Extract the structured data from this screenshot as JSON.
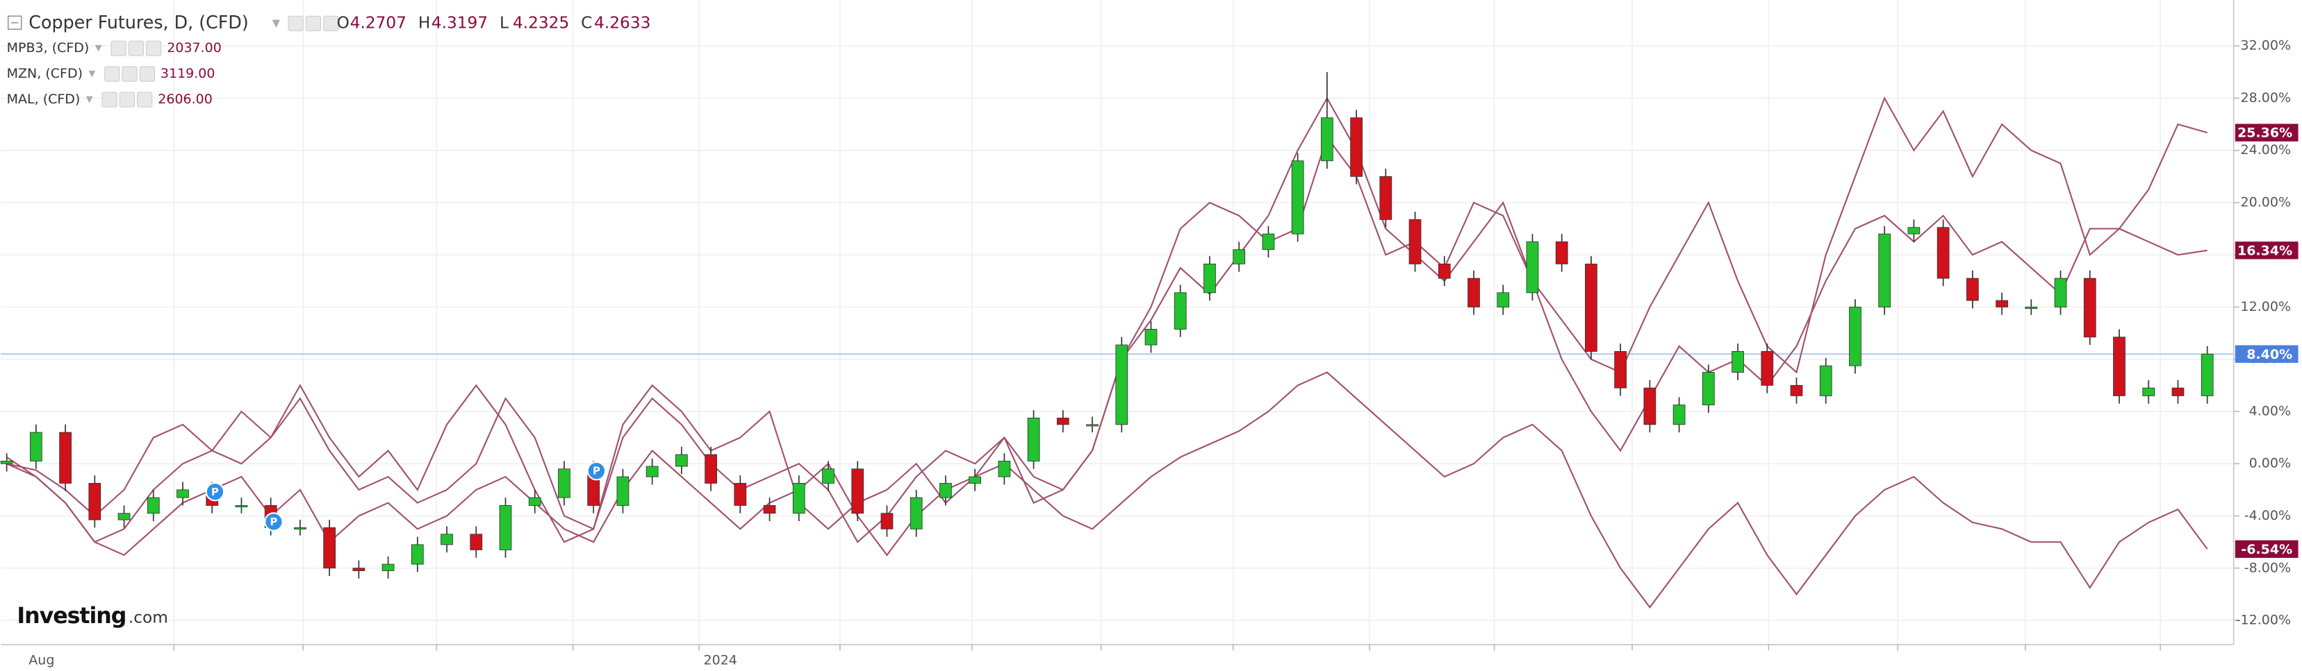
{
  "chart_data": {
    "type": "candlestick",
    "title": "Copper Futures, D, (CFD)",
    "ohlc_header": [
      {
        "key": "O",
        "value": "4.2707"
      },
      {
        "key": "H",
        "value": "4.3197"
      },
      {
        "key": "L",
        "value": "4.2325"
      },
      {
        "key": "C",
        "value": "4.2633"
      }
    ],
    "brand": "Investing",
    "brand_suffix": ".com",
    "categories": [
      null,
      "Aug",
      null,
      null,
      null,
      null,
      null,
      null,
      null,
      null,
      null,
      null,
      null,
      null,
      null,
      null,
      null,
      null,
      null,
      null,
      null,
      null,
      null,
      null,
      "2024",
      null,
      null,
      null,
      null,
      null,
      null,
      null,
      null,
      null,
      null,
      null,
      null,
      null,
      null,
      null,
      null,
      null,
      null,
      null,
      null,
      null,
      null,
      null,
      null,
      null,
      null,
      null,
      null,
      null,
      null,
      null,
      null,
      null,
      null,
      null,
      null,
      null,
      null,
      null,
      null,
      null,
      null,
      null,
      null,
      null,
      null,
      null,
      null,
      null,
      null,
      null
    ],
    "open": [
      0.0,
      0.2,
      2.4,
      -1.5,
      -4.3,
      -3.8,
      -2.6,
      -2,
      -3.2,
      -3.2,
      -4.9,
      -4.9,
      -8.0,
      -8.2,
      -7.7,
      -6.2,
      -5.4,
      -6.6,
      -3.2,
      -2.6,
      -0.4,
      -3.2,
      -1.0,
      -0.2,
      0.7,
      -1.5,
      -3.2,
      -3.8,
      -1.5,
      -0.4,
      -3.8,
      -5.0,
      -2.6,
      -1.5,
      -1.0,
      0.2,
      3.5,
      3.0,
      3.0,
      9.1,
      10.3,
      13.1,
      15.3,
      16.4,
      17.6,
      23.2,
      26.5,
      22.0,
      18.7,
      15.3,
      14.2,
      12.0,
      13.1,
      17.0,
      15.3,
      8.6,
      5.8,
      3.0,
      4.5,
      7.0,
      8.6,
      6.0,
      5.2,
      7.5,
      12.0,
      17.6,
      18.1,
      14.2,
      12.5,
      12.0,
      12.0,
      14.2,
      9.7,
      5.2,
      5.8,
      5.2
    ],
    "high": [
      0.8,
      3.0,
      3.0,
      -0.9,
      -3.2,
      -2.0,
      -1.4,
      -1.4,
      -2.6,
      -2.6,
      -4.3,
      -4.3,
      -7.4,
      -7.1,
      -5.6,
      -4.8,
      -4.8,
      -2.6,
      -2.0,
      0.2,
      0.2,
      -0.4,
      0.4,
      1.3,
      1.3,
      -0.9,
      -2.6,
      -0.9,
      0.2,
      0.2,
      -3.2,
      -2.0,
      -0.9,
      -0.4,
      0.8,
      4.1,
      4.1,
      3.6,
      9.7,
      10.9,
      13.7,
      15.9,
      17.0,
      18.2,
      23.8,
      30.0,
      27.1,
      22.6,
      19.3,
      15.9,
      14.8,
      13.7,
      17.6,
      17.6,
      15.9,
      9.2,
      6.4,
      5.1,
      7.6,
      9.2,
      9.2,
      6.6,
      8.1,
      12.6,
      18.2,
      18.7,
      18.7,
      14.8,
      13.1,
      12.6,
      14.8,
      14.8,
      10.3,
      6.4,
      6.4,
      9.0
    ],
    "low": [
      -0.6,
      -0.4,
      -2.1,
      -4.9,
      -4.9,
      -4.4,
      -3.2,
      -3.8,
      -3.8,
      -5.5,
      -5.5,
      -8.6,
      -8.8,
      -8.8,
      -8.3,
      -6.8,
      -7.2,
      -7.2,
      -3.8,
      -3.2,
      -3.8,
      -3.8,
      -1.6,
      -0.8,
      -2.1,
      -3.8,
      -4.4,
      -4.4,
      -2.1,
      -4.4,
      -5.6,
      -5.6,
      -3.2,
      -2.1,
      -1.6,
      -0.4,
      2.4,
      2.4,
      2.4,
      8.5,
      9.7,
      12.5,
      14.7,
      15.8,
      17.0,
      22.6,
      21.4,
      18.1,
      14.7,
      13.6,
      11.4,
      11.4,
      12.5,
      14.7,
      8.0,
      5.2,
      2.4,
      2.4,
      3.9,
      6.4,
      5.4,
      4.6,
      4.6,
      6.9,
      11.4,
      17.0,
      13.6,
      11.9,
      11.4,
      11.4,
      11.4,
      9.1,
      4.6,
      4.6,
      4.6,
      4.6
    ],
    "close": [
      0.2,
      2.4,
      -1.5,
      -4.3,
      -3.8,
      -2.6,
      -2,
      -3.2,
      -3.2,
      -4.9,
      -4.9,
      -8.0,
      -8.2,
      -7.7,
      -6.2,
      -5.4,
      -6.6,
      -3.2,
      -2.6,
      -0.4,
      -3.2,
      -1.0,
      -0.2,
      0.7,
      -1.5,
      -3.2,
      -3.8,
      -1.5,
      -0.4,
      -3.8,
      -5.0,
      -2.6,
      -1.5,
      -1.0,
      0.2,
      3.5,
      3.0,
      3.0,
      9.1,
      10.3,
      13.1,
      15.3,
      16.4,
      17.6,
      23.2,
      26.5,
      22.0,
      18.7,
      15.3,
      14.2,
      12.0,
      13.1,
      17.0,
      15.3,
      8.6,
      5.8,
      3.0,
      4.5,
      7.0,
      8.6,
      6.0,
      5.2,
      7.5,
      12.0,
      17.6,
      18.1,
      14.2,
      12.5,
      12.0,
      12.0,
      14.2,
      9.7,
      5.2,
      5.8,
      5.2,
      8.4
    ],
    "close_label": "8.40%",
    "up_color": "#22c32e",
    "down_color": "#d0121b",
    "price_line_color": "#4a7fe0",
    "events": [
      "P",
      "P",
      "P"
    ],
    "series": [
      {
        "name": "MPB3, (CFD)",
        "last_price": "2037.00",
        "color": "#a0506e",
        "end_label": "25.36%",
        "values": [
          0,
          -0.5,
          -2,
          -4,
          -2,
          2,
          3,
          1,
          4,
          2,
          6,
          2,
          -1,
          1,
          -2,
          3,
          6,
          3,
          -2,
          -6,
          -5,
          3,
          6,
          4,
          1,
          2,
          4,
          -3,
          -5,
          -3,
          -2,
          0,
          -3,
          -1,
          2,
          -1,
          -2,
          1,
          8,
          12,
          18,
          20,
          19,
          17,
          18,
          25,
          22,
          16,
          17,
          15,
          20,
          19,
          14,
          11,
          8,
          7,
          12,
          16,
          20,
          14,
          9,
          7,
          16,
          22,
          28,
          24,
          27,
          22,
          26,
          24,
          23,
          16,
          18,
          21,
          26,
          25.36
        ]
      },
      {
        "name": "MZN, (CFD)",
        "last_price": "3119.00",
        "color": "#a0506e",
        "end_label": "16.34%",
        "values": [
          0.5,
          -1,
          -3,
          -6,
          -5,
          -2,
          0,
          1,
          0,
          2,
          5,
          1,
          -2,
          -1,
          -3,
          -2,
          0,
          5,
          2,
          -4,
          -5,
          2,
          5,
          3,
          0,
          -2,
          -1,
          0,
          -2,
          -6,
          -4,
          -1,
          1,
          0,
          2,
          -3,
          -2,
          1,
          8,
          11,
          15,
          13,
          16,
          19,
          24,
          28,
          24,
          18,
          16,
          14,
          17,
          20,
          14,
          8,
          4,
          1,
          5,
          9,
          7,
          8,
          6,
          9,
          14,
          18,
          19,
          17,
          19,
          16,
          17,
          15,
          13,
          18,
          18,
          17,
          16,
          16.34
        ]
      },
      {
        "name": "MAL, (CFD)",
        "last_price": "2606.00",
        "color": "#a0506e",
        "end_label": "-6.54%",
        "values": [
          0,
          -1,
          -3,
          -6,
          -7,
          -5,
          -3,
          -2,
          -1,
          -4,
          -2,
          -6,
          -4,
          -3,
          -5,
          -4,
          -2,
          -1,
          -3,
          -5,
          -6,
          -2,
          1,
          -1,
          -3,
          -5,
          -3,
          -2,
          0,
          -4,
          -7,
          -4,
          -2,
          -1,
          0,
          -2,
          -4,
          -5,
          -3,
          -1,
          0.5,
          1.5,
          2.5,
          4,
          6,
          7,
          5,
          3,
          1,
          -1,
          0,
          2,
          3,
          1,
          -4,
          -8,
          -11,
          -8,
          -5,
          -3,
          -7,
          -10,
          -7,
          -4,
          -2,
          -1,
          -3,
          -4.5,
          -5,
          -6,
          -6,
          -9.5,
          -6,
          -4.5,
          -3.5,
          -6.54
        ]
      }
    ],
    "badge_color": "#8b0a3a",
    "ylim": [
      -13.86,
      35.52
    ],
    "yticks": [
      {
        "value": 32,
        "label": "32.00%"
      },
      {
        "value": 28,
        "label": "28.00%"
      },
      {
        "value": 24,
        "label": "24.00%"
      },
      {
        "value": 20,
        "label": "20.00%"
      },
      {
        "value": 16,
        "label": "16.00%"
      },
      {
        "value": 12,
        "label": "12.00%"
      },
      {
        "value": 8,
        "label": "8.00%"
      },
      {
        "value": 4,
        "label": "4.00%"
      },
      {
        "value": 0,
        "label": "0.00%"
      },
      {
        "value": -4,
        "label": "-4.00%"
      },
      {
        "value": -8,
        "label": "-8.00%"
      },
      {
        "value": -12,
        "label": "-12.00%"
      }
    ],
    "grid": true
  }
}
